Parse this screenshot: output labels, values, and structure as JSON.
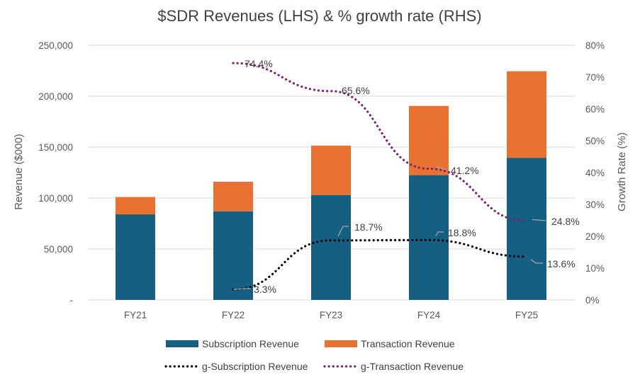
{
  "chart_data": {
    "type": "bar",
    "stacked": true,
    "title": "$SDR Revenues (LHS) & % growth rate (RHS)",
    "categories": [
      "FY21",
      "FY22",
      "FY23",
      "FY24",
      "FY25"
    ],
    "ylabel": "Revenue ($000)",
    "y2label": "Growth Rate (%)",
    "ylim": [
      0,
      250000
    ],
    "y2lim": [
      0,
      80
    ],
    "yticks": [
      {
        "value": 0,
        "label": "-"
      },
      {
        "value": 50000,
        "label": "50,000"
      },
      {
        "value": 100000,
        "label": "100,000"
      },
      {
        "value": 150000,
        "label": "150,000"
      },
      {
        "value": 200000,
        "label": "200,000"
      },
      {
        "value": 250000,
        "label": "250,000"
      }
    ],
    "y2ticks": [
      {
        "value": 0,
        "label": "0%"
      },
      {
        "value": 10,
        "label": "10%"
      },
      {
        "value": 20,
        "label": "20%"
      },
      {
        "value": 30,
        "label": "30%"
      },
      {
        "value": 40,
        "label": "40%"
      },
      {
        "value": 50,
        "label": "50%"
      },
      {
        "value": 60,
        "label": "60%"
      },
      {
        "value": 70,
        "label": "70%"
      },
      {
        "value": 80,
        "label": "80%"
      }
    ],
    "gridlines": true,
    "legend_position": "bottom",
    "series": [
      {
        "name": "Subscription Revenue",
        "kind": "bar",
        "axis": "left",
        "color": "#156082",
        "values": [
          84000,
          87000,
          103000,
          122500,
          139500
        ]
      },
      {
        "name": "Transaction Revenue",
        "kind": "bar",
        "axis": "left",
        "color": "#e97132",
        "values": [
          17000,
          29000,
          48500,
          68000,
          85000
        ]
      },
      {
        "name": "g-Subscription Revenue",
        "kind": "line",
        "axis": "right",
        "color": "#000000",
        "style": "dotted",
        "values": [
          null,
          3.3,
          18.7,
          18.8,
          13.6
        ],
        "labels": [
          "",
          "3.3%",
          "18.7%",
          "18.8%",
          "13.6%"
        ]
      },
      {
        "name": "g-Transaction Revenue",
        "kind": "line",
        "axis": "right",
        "color": "#7b1f7a",
        "style": "dotted",
        "values": [
          null,
          74.4,
          65.6,
          41.2,
          24.8
        ],
        "labels": [
          "",
          "74.4%",
          "65.6%",
          "41.2%",
          "24.8%"
        ]
      }
    ]
  }
}
